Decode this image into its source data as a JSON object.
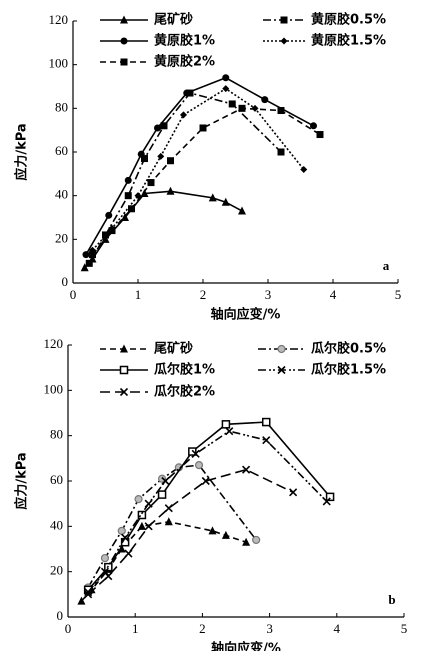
{
  "chart_data": [
    {
      "type": "line",
      "panel_label": "a",
      "x_label": "轴向应变/%",
      "y_label": "应力/kPa",
      "xlim": [
        0,
        5
      ],
      "xticks": [
        0,
        1,
        2,
        3,
        4,
        5
      ],
      "ylim": [
        0,
        120
      ],
      "yticks": [
        0,
        20,
        40,
        60,
        80,
        100,
        120
      ],
      "series": [
        {
          "name": "尾矿砂",
          "color": "#000000",
          "marker": "triangle",
          "line_style": "solid",
          "x": [
            0.18,
            0.3,
            0.5,
            0.8,
            1.1,
            1.5,
            2.15,
            2.35,
            2.6
          ],
          "values": [
            7,
            11,
            20,
            30,
            41,
            42,
            39,
            37,
            33
          ]
        },
        {
          "name": "黄原胶0.5%",
          "color": "#000000",
          "marker": "square",
          "line_style": "dashdot",
          "x": [
            0.25,
            0.5,
            0.85,
            1.1,
            1.4,
            1.8,
            2.45,
            3.2
          ],
          "values": [
            9,
            22,
            40,
            57,
            72,
            87,
            82,
            60
          ]
        },
        {
          "name": "黄原胶1%",
          "color": "#000000",
          "marker": "circle",
          "line_style": "solid",
          "x": [
            0.2,
            0.55,
            0.85,
            1.05,
            1.3,
            1.75,
            2.35,
            2.95,
            3.7
          ],
          "values": [
            13,
            31,
            47,
            59,
            71,
            87,
            94,
            84,
            72
          ]
        },
        {
          "name": "黄原胶1.5%",
          "color": "#000000",
          "marker": "diamond",
          "line_style": "dotted",
          "x": [
            0.3,
            0.6,
            1.0,
            1.35,
            1.7,
            2.35,
            2.8,
            3.55
          ],
          "values": [
            15,
            25,
            40,
            58,
            77,
            89,
            80,
            52
          ]
        },
        {
          "name": "黄原胶2%",
          "color": "#000000",
          "marker": "square",
          "line_style": "dashed",
          "x": [
            0.3,
            0.6,
            0.9,
            1.2,
            1.5,
            2.0,
            2.6,
            3.2,
            3.8
          ],
          "values": [
            13,
            24,
            34,
            46,
            56,
            71,
            80,
            79,
            68
          ]
        }
      ]
    },
    {
      "type": "line",
      "panel_label": "b",
      "x_label": "轴向应变/%",
      "y_label": "应力/kPa",
      "xlim": [
        0,
        5
      ],
      "xticks": [
        0,
        1,
        2,
        3,
        4,
        5
      ],
      "ylim": [
        0,
        120
      ],
      "yticks": [
        0,
        20,
        40,
        60,
        80,
        100,
        120
      ],
      "series": [
        {
          "name": "尾矿砂",
          "color": "#000000",
          "marker": "triangle",
          "line_style": "dashed",
          "x": [
            0.2,
            0.35,
            0.6,
            0.8,
            1.1,
            1.5,
            2.15,
            2.35,
            2.65
          ],
          "values": [
            7,
            12,
            21,
            30,
            40,
            42,
            38,
            36,
            33
          ]
        },
        {
          "name": "瓜尔胶0.5%",
          "color": "#000000",
          "marker": "circle-grey",
          "line_style": "dashdot",
          "x": [
            0.3,
            0.55,
            0.8,
            1.05,
            1.4,
            1.65,
            1.95,
            2.8
          ],
          "values": [
            13,
            26,
            38,
            52,
            61,
            66,
            67,
            34
          ]
        },
        {
          "name": "瓜尔胶1%",
          "color": "#000000",
          "marker": "square-open",
          "line_style": "solid",
          "x": [
            0.3,
            0.6,
            0.85,
            1.1,
            1.4,
            1.85,
            2.35,
            2.95,
            3.9
          ],
          "values": [
            12,
            22,
            33,
            45,
            54,
            73,
            85,
            86,
            53
          ]
        },
        {
          "name": "瓜尔胶1.5%",
          "color": "#000000",
          "marker": "x",
          "line_style": "dashdotdot",
          "x": [
            0.3,
            0.55,
            0.85,
            1.2,
            1.45,
            1.9,
            2.4,
            2.95,
            3.85
          ],
          "values": [
            11,
            20,
            35,
            50,
            60,
            72,
            82,
            78,
            51
          ]
        },
        {
          "name": "瓜尔胶2%",
          "color": "#000000",
          "marker": "x",
          "line_style": "longdash",
          "x": [
            0.3,
            0.6,
            0.9,
            1.2,
            1.5,
            2.05,
            2.65,
            3.35
          ],
          "values": [
            10,
            18,
            28,
            40,
            48,
            60,
            65,
            55
          ]
        }
      ]
    }
  ]
}
